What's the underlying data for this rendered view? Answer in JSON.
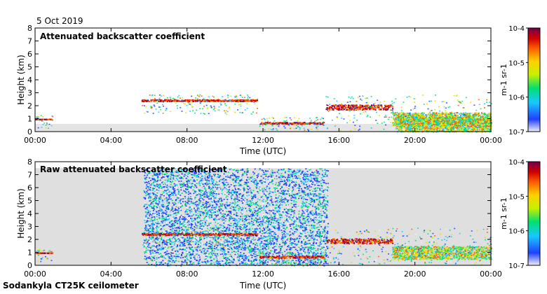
{
  "date": "5 Oct 2019",
  "footer": "Sodankyla CT25K ceilometer",
  "colors": {
    "background": "#ffffff",
    "axis": "#000000",
    "no_signal": "#d9d9d9",
    "colormap": [
      "#f0f0ff",
      "#2040ff",
      "#19c8ff",
      "#00e070",
      "#c8f000",
      "#ffd000",
      "#ff6000",
      "#d00000",
      "#700050"
    ]
  },
  "chart_data": [
    {
      "type": "heatmap",
      "title": "Attenuated backscatter coefficient",
      "xlabel": "Time (UTC)",
      "ylabel": "Height (km)",
      "x_ticks": [
        "00:00",
        "04:00",
        "08:00",
        "12:00",
        "16:00",
        "20:00",
        "00:00"
      ],
      "y_ticks": [
        "0",
        "1",
        "2",
        "3",
        "4",
        "5",
        "6",
        "7",
        "8"
      ],
      "xlim_hours": [
        0,
        24
      ],
      "ylim_km": [
        0,
        8
      ],
      "colorbar": {
        "scale": "log",
        "range": [
          1e-07,
          0.0001
        ],
        "tick_labels": [
          "10-7",
          "10-6",
          "10-5",
          "10-4"
        ],
        "label": "m-1 sr-1"
      },
      "features": [
        {
          "kind": "cloud_layer",
          "time_h": [
            0.0,
            0.9
          ],
          "height_km": [
            0.95,
            1.0
          ],
          "level": "high"
        },
        {
          "kind": "cloud_layer",
          "time_h": [
            5.6,
            11.7
          ],
          "height_km": [
            2.35,
            2.5
          ],
          "level": "high"
        },
        {
          "kind": "cloud_layer",
          "time_h": [
            11.8,
            15.2
          ],
          "height_km": [
            0.6,
            0.75
          ],
          "level": "high"
        },
        {
          "kind": "cloud_layer",
          "time_h": [
            15.3,
            18.8
          ],
          "height_km": [
            1.7,
            2.1
          ],
          "level": "high"
        },
        {
          "kind": "cloud_layer",
          "time_h": [
            18.8,
            24.0
          ],
          "height_km": [
            0.5,
            1.5
          ],
          "level": "medium"
        },
        {
          "kind": "precipitation",
          "time_h": [
            19.0,
            24.0
          ],
          "height_km": [
            0.0,
            1.2
          ],
          "level": "medium"
        }
      ]
    },
    {
      "type": "heatmap",
      "title": "Raw attenuated backscatter coefficient",
      "xlabel": "Time (UTC)",
      "ylabel": "Height (km)",
      "x_ticks": [
        "00:00",
        "04:00",
        "08:00",
        "12:00",
        "16:00",
        "20:00",
        "00:00"
      ],
      "y_ticks": [
        "0",
        "1",
        "2",
        "3",
        "4",
        "5",
        "6",
        "7",
        "8"
      ],
      "xlim_hours": [
        0,
        24
      ],
      "ylim_km": [
        0,
        8
      ],
      "colorbar": {
        "scale": "log",
        "range": [
          1e-07,
          0.0001
        ],
        "tick_labels": [
          "10-7",
          "10-6",
          "10-5",
          "10-4"
        ],
        "label": "m-1 sr-1"
      },
      "features": [
        {
          "kind": "noise_field",
          "time_h": [
            5.7,
            15.4
          ],
          "height_km": [
            0.0,
            7.5
          ],
          "level": "low"
        },
        {
          "kind": "cloud_layer",
          "time_h": [
            0.0,
            0.9
          ],
          "height_km": [
            0.95,
            1.0
          ],
          "level": "high"
        },
        {
          "kind": "cloud_layer",
          "time_h": [
            5.6,
            11.7
          ],
          "height_km": [
            2.35,
            2.5
          ],
          "level": "high"
        },
        {
          "kind": "cloud_layer",
          "time_h": [
            11.8,
            15.2
          ],
          "height_km": [
            0.6,
            0.75
          ],
          "level": "high"
        },
        {
          "kind": "cloud_layer",
          "time_h": [
            15.3,
            18.8
          ],
          "height_km": [
            1.7,
            2.1
          ],
          "level": "high"
        },
        {
          "kind": "cloud_layer",
          "time_h": [
            18.8,
            24.0
          ],
          "height_km": [
            0.5,
            1.5
          ],
          "level": "medium"
        }
      ]
    }
  ]
}
